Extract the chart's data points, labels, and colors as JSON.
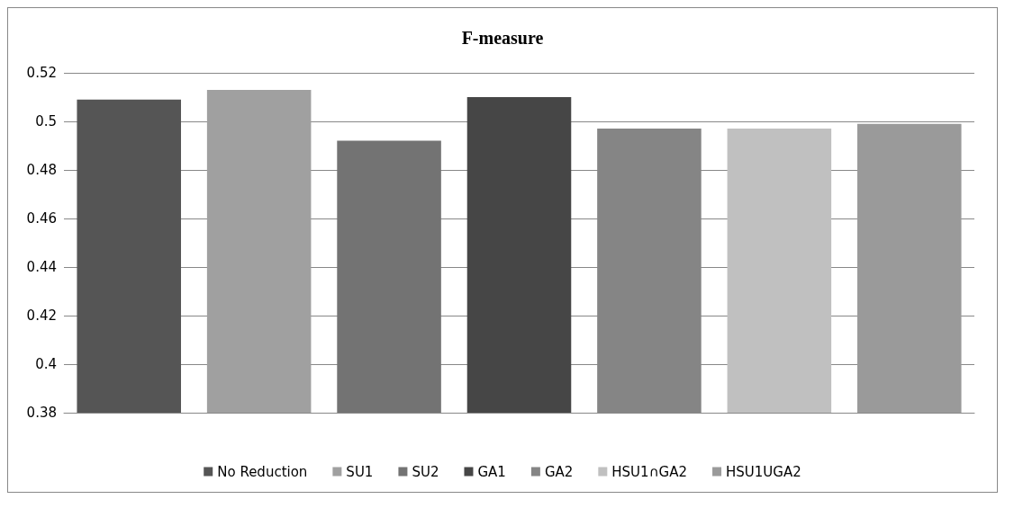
{
  "chart_data": {
    "type": "bar",
    "title": "F-measure",
    "categories": [
      null,
      null,
      null,
      null,
      null,
      null,
      null
    ],
    "series": [
      {
        "name": "No Reduction",
        "color": "#555555",
        "values": [
          0.509,
          null,
          null,
          null,
          null,
          null,
          null
        ]
      },
      {
        "name": "SU1",
        "color": "#a0a0a0",
        "values": [
          null,
          0.513,
          null,
          null,
          null,
          null,
          null
        ]
      },
      {
        "name": "SU2",
        "color": "#737373",
        "values": [
          null,
          null,
          0.492,
          null,
          null,
          null,
          null
        ]
      },
      {
        "name": "GA1",
        "color": "#464646",
        "values": [
          null,
          null,
          null,
          0.51,
          null,
          null,
          null
        ]
      },
      {
        "name": "GA2",
        "color": "#858585",
        "values": [
          null,
          null,
          null,
          null,
          0.497,
          null,
          null
        ]
      },
      {
        "name": "HSU1∩GA2",
        "color": "#c0c0c0",
        "values": [
          null,
          null,
          null,
          null,
          null,
          0.497,
          null
        ]
      },
      {
        "name": "HSU1UGA2",
        "color": "#9a9a9a",
        "values": [
          null,
          null,
          null,
          null,
          null,
          null,
          0.499
        ]
      }
    ],
    "ylim": [
      0.38,
      0.52
    ],
    "yticks": [
      0.38,
      0.4,
      0.42,
      0.44,
      0.46,
      0.48,
      0.5,
      0.52
    ],
    "grid": "y",
    "legend": "bottom"
  }
}
